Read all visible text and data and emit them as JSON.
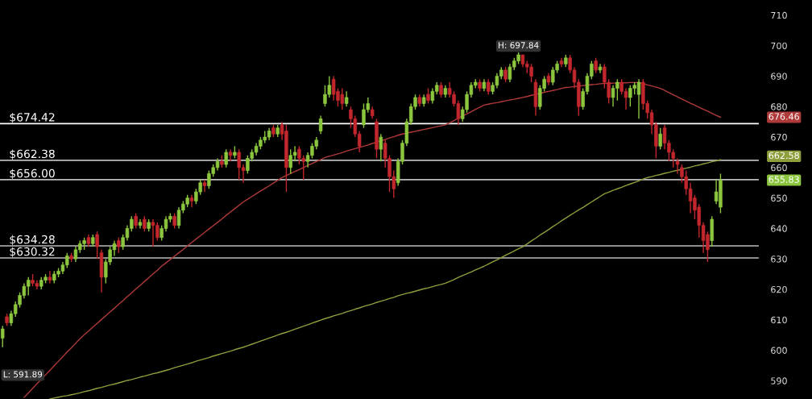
{
  "chart_data": {
    "type": "candlestick",
    "categories": [
      null,
      null,
      null,
      null,
      null,
      null,
      null,
      null,
      null,
      null,
      null,
      null,
      null,
      null,
      null,
      null,
      null,
      null,
      null,
      null,
      null,
      null,
      null,
      null,
      null,
      null,
      null,
      null,
      null,
      null,
      null,
      null,
      null,
      null,
      null,
      null,
      null,
      null,
      null,
      null,
      null,
      null,
      null,
      null,
      null,
      null,
      null,
      null,
      null,
      null,
      null,
      null,
      null,
      null,
      null,
      null,
      null,
      null,
      null,
      null,
      null,
      null,
      null,
      null,
      null,
      null,
      null,
      null,
      null,
      null,
      null,
      null,
      null,
      null,
      null,
      null,
      null,
      null,
      null,
      null,
      null,
      null,
      null,
      null,
      null,
      null,
      null,
      null,
      null,
      null,
      null,
      null,
      null,
      null,
      null,
      null,
      null,
      null,
      null,
      null,
      null,
      null,
      null,
      null,
      null,
      null,
      null,
      null,
      null,
      null,
      null,
      null,
      null,
      null,
      null,
      null,
      null,
      null,
      null,
      null,
      null,
      null,
      null,
      null,
      null,
      null,
      null,
      null,
      null,
      null,
      null,
      null,
      null,
      null,
      null,
      null,
      null,
      null,
      null,
      null,
      null,
      null,
      null,
      null,
      null,
      null,
      null,
      null,
      null,
      null,
      null,
      null,
      null,
      null,
      null,
      null,
      null,
      null,
      null,
      null,
      null,
      null,
      null,
      null,
      null,
      null,
      null,
      null
    ],
    "ohlc": [
      [
        604,
        608,
        601,
        607
      ],
      [
        611,
        612,
        608,
        609
      ],
      [
        609,
        613,
        608,
        612
      ],
      [
        612,
        616,
        611,
        615
      ],
      [
        615,
        619,
        614,
        618
      ],
      [
        618,
        622,
        617,
        621
      ],
      [
        621,
        624,
        618,
        623
      ],
      [
        623,
        625,
        621,
        622
      ],
      [
        622,
        623,
        620,
        621
      ],
      [
        621,
        624,
        620,
        623
      ],
      [
        623,
        625,
        622,
        624
      ],
      [
        624,
        626,
        622,
        623
      ],
      [
        623,
        626,
        622,
        625
      ],
      [
        625,
        627,
        624,
        626
      ],
      [
        626,
        629,
        625,
        628
      ],
      [
        628,
        632,
        627,
        631
      ],
      [
        631,
        632,
        629,
        630
      ],
      [
        630,
        634,
        629,
        633
      ],
      [
        633,
        636,
        632,
        635
      ],
      [
        635,
        637,
        633,
        636
      ],
      [
        637,
        638,
        634,
        635
      ],
      [
        635,
        638,
        634,
        637
      ],
      [
        638,
        639,
        630,
        634
      ],
      [
        632,
        633,
        619,
        624
      ],
      [
        624,
        630,
        622,
        629
      ],
      [
        629,
        634,
        628,
        633
      ],
      [
        633,
        636,
        631,
        635
      ],
      [
        636,
        637,
        632,
        634
      ],
      [
        634,
        638,
        633,
        637
      ],
      [
        637,
        641,
        636,
        640
      ],
      [
        640,
        644,
        639,
        643
      ],
      [
        644,
        645,
        640,
        641
      ],
      [
        641,
        643,
        640,
        642
      ],
      [
        643,
        644,
        639,
        640
      ],
      [
        640,
        643,
        639,
        642
      ],
      [
        642,
        643,
        634,
        641
      ],
      [
        641,
        642,
        636,
        637
      ],
      [
        637,
        641,
        636,
        640
      ],
      [
        640,
        644,
        639,
        643
      ],
      [
        643,
        645,
        642,
        644
      ],
      [
        644,
        645,
        640,
        641
      ],
      [
        641,
        647,
        640,
        646
      ],
      [
        646,
        649,
        645,
        648
      ],
      [
        648,
        651,
        647,
        650
      ],
      [
        650,
        651,
        647,
        649
      ],
      [
        649,
        653,
        648,
        652
      ],
      [
        652,
        656,
        651,
        655
      ],
      [
        655,
        656,
        652,
        654
      ],
      [
        654,
        659,
        653,
        658
      ],
      [
        658,
        661,
        657,
        660
      ],
      [
        660,
        663,
        659,
        662
      ],
      [
        662,
        664,
        660,
        661
      ],
      [
        661,
        666,
        660,
        665
      ],
      [
        665,
        666,
        662,
        664
      ],
      [
        664,
        667,
        663,
        665
      ],
      [
        665,
        666,
        656,
        660
      ],
      [
        660,
        661,
        655,
        659
      ],
      [
        659,
        664,
        658,
        663
      ],
      [
        663,
        666,
        662,
        665
      ],
      [
        665,
        668,
        664,
        667
      ],
      [
        667,
        670,
        666,
        669
      ],
      [
        669,
        672,
        668,
        670
      ],
      [
        670,
        673,
        669,
        672
      ],
      [
        673,
        674,
        670,
        671
      ],
      [
        671,
        674,
        670,
        673
      ],
      [
        674,
        675,
        669,
        671
      ],
      [
        672,
        674,
        652,
        660
      ],
      [
        660,
        666,
        658,
        664
      ],
      [
        664,
        667,
        662,
        665
      ],
      [
        666,
        667,
        661,
        663
      ],
      [
        663,
        664,
        656,
        662
      ],
      [
        662,
        665,
        660,
        664
      ],
      [
        664,
        668,
        663,
        667
      ],
      [
        667,
        670,
        666,
        669
      ],
      [
        672,
        677,
        671,
        676
      ],
      [
        681,
        687,
        680,
        684
      ],
      [
        684,
        690,
        683,
        687
      ],
      [
        689,
        690,
        682,
        684
      ],
      [
        685,
        686,
        680,
        682
      ],
      [
        684,
        686,
        679,
        681
      ],
      [
        681,
        685,
        680,
        683
      ],
      [
        679,
        680,
        673,
        676
      ],
      [
        676,
        677,
        670,
        671
      ],
      [
        671,
        672,
        665,
        667
      ],
      [
        674,
        681,
        673,
        679
      ],
      [
        679,
        683,
        678,
        681
      ],
      [
        679,
        680,
        676,
        677
      ],
      [
        675,
        676,
        663,
        666
      ],
      [
        666,
        671,
        662,
        670
      ],
      [
        668,
        669,
        660,
        663
      ],
      [
        663,
        664,
        652,
        657
      ],
      [
        657,
        659,
        650,
        653
      ],
      [
        655,
        663,
        654,
        662
      ],
      [
        662,
        669,
        661,
        668
      ],
      [
        668,
        676,
        667,
        675
      ],
      [
        675,
        681,
        674,
        680
      ],
      [
        680,
        684,
        679,
        683
      ],
      [
        683,
        684,
        680,
        681
      ],
      [
        681,
        684,
        680,
        683
      ],
      [
        684,
        686,
        681,
        682
      ],
      [
        682,
        686,
        681,
        685
      ],
      [
        685,
        688,
        684,
        687
      ],
      [
        687,
        688,
        683,
        684
      ],
      [
        684,
        687,
        683,
        686
      ],
      [
        686,
        688,
        683,
        684
      ],
      [
        684,
        685,
        680,
        681
      ],
      [
        681,
        682,
        674,
        676
      ],
      [
        676,
        680,
        675,
        679
      ],
      [
        679,
        685,
        678,
        684
      ],
      [
        684,
        688,
        683,
        687
      ],
      [
        687,
        689,
        686,
        688
      ],
      [
        688,
        689,
        685,
        686
      ],
      [
        686,
        689,
        685,
        688
      ],
      [
        688,
        689,
        684,
        685
      ],
      [
        685,
        688,
        684,
        687
      ],
      [
        687,
        691,
        686,
        690
      ],
      [
        690,
        693,
        689,
        692
      ],
      [
        692,
        693,
        688,
        689
      ],
      [
        689,
        694,
        688,
        693
      ],
      [
        693,
        696,
        692,
        695
      ],
      [
        695,
        697.84,
        694,
        697
      ],
      [
        697,
        697,
        693,
        694
      ],
      [
        694,
        695,
        691,
        693
      ],
      [
        693,
        694,
        688,
        690
      ],
      [
        688,
        689,
        677,
        680
      ],
      [
        680,
        687,
        679,
        686
      ],
      [
        686,
        690,
        685,
        689
      ],
      [
        690,
        691,
        687,
        688
      ],
      [
        688,
        693,
        687,
        692
      ],
      [
        692,
        695,
        691,
        694
      ],
      [
        695,
        696,
        693,
        694
      ],
      [
        694,
        697,
        693,
        696
      ],
      [
        696,
        697,
        691,
        692
      ],
      [
        692,
        693,
        686,
        688
      ],
      [
        688,
        689,
        677,
        680
      ],
      [
        680,
        686,
        679,
        685
      ],
      [
        685,
        691,
        684,
        690
      ],
      [
        690,
        695,
        689,
        694
      ],
      [
        695,
        696,
        691,
        692
      ],
      [
        692,
        694,
        691,
        693
      ],
      [
        693,
        694,
        686,
        688
      ],
      [
        688,
        689,
        681,
        683
      ],
      [
        683,
        687,
        680,
        686
      ],
      [
        686,
        689,
        682,
        688
      ],
      [
        688,
        689,
        684,
        685
      ],
      [
        685,
        686,
        679,
        683
      ],
      [
        683,
        687,
        680,
        686
      ],
      [
        686,
        688,
        684,
        687
      ],
      [
        684,
        689,
        676,
        688
      ],
      [
        688,
        689,
        679,
        681
      ],
      [
        681,
        682,
        676,
        678
      ],
      [
        678,
        679,
        671,
        674
      ],
      [
        674,
        675,
        663,
        667
      ],
      [
        667,
        673,
        666,
        671
      ],
      [
        673,
        674,
        666,
        668
      ],
      [
        668,
        669,
        662,
        665
      ],
      [
        665,
        666,
        660,
        663
      ],
      [
        662,
        663,
        658,
        661
      ],
      [
        660,
        661,
        655,
        657
      ],
      [
        657,
        659,
        651,
        653
      ],
      [
        653,
        655,
        645,
        649
      ],
      [
        650,
        651,
        643,
        646
      ],
      [
        647,
        648,
        637,
        641
      ],
      [
        641,
        642,
        632,
        636
      ],
      [
        638,
        639,
        629,
        633
      ],
      [
        636,
        644,
        634,
        643
      ],
      [
        649,
        656,
        648,
        652
      ],
      [
        647,
        658,
        645,
        655.83
      ]
    ],
    "colors": [
      "#8cc63f",
      "#c1272d",
      "#8cc63f",
      "#8cc63f",
      "#8cc63f",
      "#8cc63f",
      "#8cc63f",
      "#c1272d",
      "#c1272d",
      "#8cc63f",
      "#8cc63f",
      "#c1272d",
      "#8cc63f",
      "#8cc63f",
      "#8cc63f",
      "#8cc63f",
      "#c1272d",
      "#8cc63f",
      "#8cc63f",
      "#8cc63f",
      "#c1272d",
      "#8cc63f",
      "#c1272d",
      "#c1272d",
      "#8cc63f",
      "#8cc63f",
      "#8cc63f",
      "#c1272d",
      "#8cc63f",
      "#8cc63f",
      "#8cc63f",
      "#c1272d",
      "#8cc63f",
      "#c1272d",
      "#8cc63f",
      "#c1272d",
      "#c1272d",
      "#8cc63f",
      "#8cc63f",
      "#8cc63f",
      "#c1272d",
      "#8cc63f",
      "#8cc63f",
      "#8cc63f",
      "#c1272d",
      "#8cc63f",
      "#8cc63f",
      "#c1272d",
      "#8cc63f",
      "#8cc63f",
      "#8cc63f",
      "#c1272d",
      "#8cc63f",
      "#c1272d",
      "#8cc63f",
      "#c1272d",
      "#c1272d",
      "#8cc63f",
      "#8cc63f",
      "#8cc63f",
      "#8cc63f",
      "#8cc63f",
      "#8cc63f",
      "#c1272d",
      "#8cc63f",
      "#c1272d",
      "#c1272d",
      "#8cc63f",
      "#8cc63f",
      "#c1272d",
      "#c1272d",
      "#8cc63f",
      "#8cc63f",
      "#8cc63f",
      "#8cc63f",
      "#8cc63f",
      "#8cc63f",
      "#c1272d",
      "#c1272d",
      "#c1272d",
      "#8cc63f",
      "#c1272d",
      "#c1272d",
      "#c1272d",
      "#8cc63f",
      "#8cc63f",
      "#c1272d",
      "#c1272d",
      "#8cc63f",
      "#c1272d",
      "#c1272d",
      "#c1272d",
      "#8cc63f",
      "#8cc63f",
      "#8cc63f",
      "#8cc63f",
      "#8cc63f",
      "#c1272d",
      "#8cc63f",
      "#c1272d",
      "#8cc63f",
      "#8cc63f",
      "#c1272d",
      "#8cc63f",
      "#c1272d",
      "#c1272d",
      "#c1272d",
      "#8cc63f",
      "#8cc63f",
      "#8cc63f",
      "#8cc63f",
      "#c1272d",
      "#8cc63f",
      "#c1272d",
      "#8cc63f",
      "#8cc63f",
      "#8cc63f",
      "#c1272d",
      "#8cc63f",
      "#8cc63f",
      "#8cc63f",
      "#c1272d",
      "#c1272d",
      "#c1272d",
      "#c1272d",
      "#8cc63f",
      "#8cc63f",
      "#c1272d",
      "#8cc63f",
      "#8cc63f",
      "#c1272d",
      "#8cc63f",
      "#c1272d",
      "#c1272d",
      "#c1272d",
      "#8cc63f",
      "#8cc63f",
      "#8cc63f",
      "#c1272d",
      "#8cc63f",
      "#c1272d",
      "#c1272d",
      "#8cc63f",
      "#8cc63f",
      "#c1272d",
      "#c1272d",
      "#8cc63f",
      "#8cc63f",
      "#8cc63f",
      "#c1272d",
      "#c1272d",
      "#c1272d",
      "#c1272d",
      "#8cc63f",
      "#c1272d",
      "#c1272d",
      "#c1272d",
      "#c1272d",
      "#c1272d",
      "#c1272d",
      "#c1272d",
      "#c1272d",
      "#c1272d",
      "#c1272d",
      "#c1272d",
      "#8cc63f",
      "#8cc63f",
      "#8cc63f"
    ],
    "series": [
      {
        "type": "line",
        "color": "#b03a3a",
        "values": [
          null,
          null,
          null,
          null,
          null,
          584.5,
          586,
          587.5,
          589,
          590.4,
          591.9,
          593.4,
          594.9,
          596.4,
          597.9,
          599.4,
          600.8,
          602.3,
          603.8,
          605.1,
          606.3,
          607.6,
          608.8,
          610.1,
          611.3,
          612.6,
          613.8,
          615.1,
          616.3,
          617.6,
          618.8,
          620.1,
          621.3,
          622.6,
          623.8,
          625.1,
          626.3,
          627.6,
          628.7,
          629.8,
          630.9,
          632,
          633.1,
          634.3,
          635.4,
          636.5,
          637.6,
          638.7,
          639.8,
          640.9,
          642,
          643.1,
          644.3,
          645.4,
          646.5,
          647.6,
          648.7,
          649.6,
          650.5,
          651.4,
          652.3,
          653.1,
          654,
          654.9,
          655.8,
          656.7,
          657.4,
          658,
          658.7,
          659.3,
          660,
          660.7,
          661.3,
          662,
          662.6,
          663.3,
          663.7,
          664.1,
          664.5,
          664.9,
          665.4,
          665.8,
          666.2,
          666.6,
          667,
          667.4,
          667.9,
          668.3,
          668.8,
          669.2,
          669.7,
          670.1,
          670.6,
          671,
          671.3,
          671.6,
          671.9,
          672.2,
          672.5,
          672.8,
          673.1,
          673.4,
          673.7,
          674,
          674.7,
          675.4,
          676.2,
          676.9,
          677.6,
          678.3,
          679.1,
          679.8,
          680.5,
          680.8,
          681.1,
          681.3,
          681.6,
          681.9,
          682.2,
          682.4,
          682.7,
          683,
          683.3,
          683.7,
          684,
          684.3,
          684.7,
          685,
          685.3,
          685.6,
          686,
          686.3,
          686.4,
          686.6,
          686.7,
          686.9,
          687,
          687.2,
          687.3,
          687.5,
          687.6,
          687.6,
          687.7,
          687.7,
          687.8,
          687.8,
          687.9,
          687.9,
          687.9,
          687.5,
          687.1,
          686.8,
          686.4,
          686,
          685.3,
          684.6,
          683.9,
          683.2,
          682.5,
          681.8,
          681.1,
          680.5,
          679.8,
          679.1,
          678.5,
          677.8,
          677.1,
          676.5
        ]
      },
      {
        "type": "line",
        "color": "#8f9e3c",
        "values": [
          null,
          null,
          null,
          null,
          null,
          null,
          null,
          null,
          null,
          null,
          null,
          584,
          584.3,
          584.6,
          584.9,
          585.1,
          585.4,
          585.7,
          586,
          586.4,
          586.7,
          587.1,
          587.5,
          587.8,
          588.2,
          588.6,
          588.9,
          589.3,
          589.7,
          590.1,
          590.4,
          590.8,
          591.2,
          591.5,
          591.9,
          592.3,
          592.6,
          593,
          593.4,
          593.8,
          594.3,
          594.7,
          595.1,
          595.5,
          595.9,
          596.4,
          596.8,
          597.2,
          597.6,
          598.1,
          598.5,
          598.9,
          599.3,
          599.7,
          600.2,
          600.6,
          601,
          601.5,
          602,
          602.5,
          603,
          603.5,
          604,
          604.5,
          605,
          605.5,
          605.9,
          606.4,
          606.9,
          607.4,
          607.9,
          608.4,
          608.9,
          609.4,
          609.9,
          610.4,
          610.8,
          611.3,
          611.7,
          612.1,
          612.6,
          613,
          613.5,
          613.9,
          614.4,
          614.8,
          615.2,
          615.7,
          616.1,
          616.5,
          617,
          617.4,
          617.9,
          618.3,
          618.7,
          619,
          619.4,
          619.8,
          620.2,
          620.5,
          620.9,
          621.3,
          621.6,
          622,
          622.6,
          623.2,
          623.9,
          624.5,
          625.1,
          625.7,
          626.4,
          627,
          627.6,
          628.3,
          629,
          629.7,
          630.4,
          631.2,
          631.9,
          632.6,
          633.3,
          634,
          634.9,
          635.9,
          636.8,
          637.8,
          638.7,
          639.6,
          640.6,
          641.5,
          642.5,
          643.4,
          644.3,
          645.2,
          646.1,
          646.9,
          647.8,
          648.7,
          649.6,
          650.5,
          651.4,
          651.9,
          652.5,
          653,
          653.5,
          654.1,
          654.6,
          655.1,
          655.6,
          656.2,
          656.7,
          657,
          657.4,
          657.7,
          658.1,
          658.4,
          658.8,
          659.1,
          659.4,
          659.8,
          660.1,
          660.5,
          660.8,
          661.2,
          661.5,
          661.9,
          662.2,
          662.6
        ]
      }
    ],
    "ylim": [
      584,
      715
    ],
    "yticks": [
      590,
      600,
      610,
      620,
      630,
      640,
      650,
      660,
      670,
      680,
      690,
      700,
      710
    ],
    "ref_lines": [
      {
        "axis": "y",
        "value": 674.42,
        "label": "$674.42",
        "color": "#ffffff"
      },
      {
        "axis": "y",
        "value": 662.38,
        "label": "$662.38",
        "color": "#bbbbbb"
      },
      {
        "axis": "y",
        "value": 656.0,
        "label": "$656.00",
        "color": "#bbbbbb"
      },
      {
        "axis": "y",
        "value": 634.28,
        "label": "$634.28",
        "color": "#bbbbbb"
      },
      {
        "axis": "y",
        "value": 630.32,
        "label": "$630.32",
        "color": "#bbbbbb"
      }
    ],
    "annotations": [
      "H: 697.84",
      "L: 591.89",
      "676.46",
      "662.58",
      "655.83"
    ],
    "grid": false,
    "legend": false
  }
}
